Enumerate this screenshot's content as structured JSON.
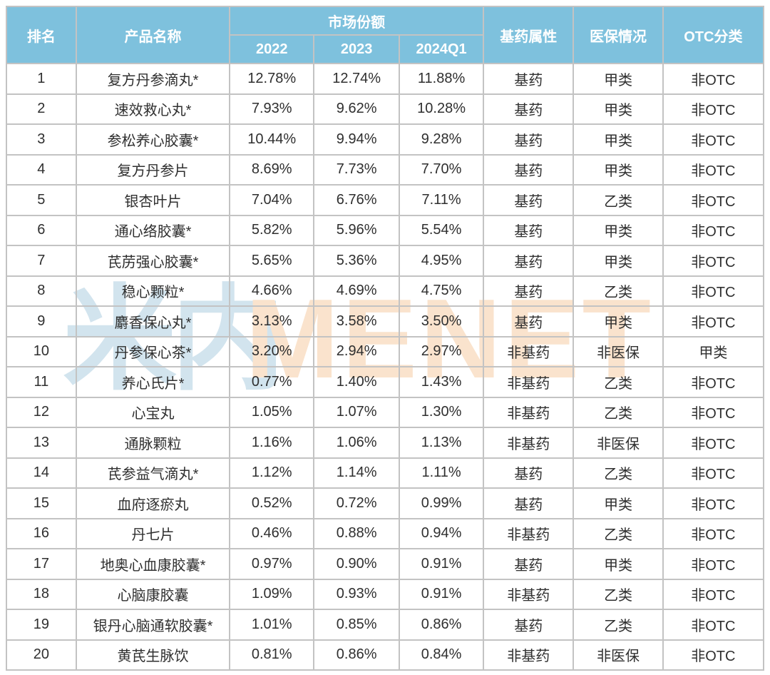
{
  "colors": {
    "header_bg": "#7ec1dd",
    "header_text": "#ffffff",
    "grid_line": "#c3c3c3",
    "body_text": "#2f2f2f",
    "watermark_blue": "#d2e4ee",
    "watermark_orange": "#fae3cd"
  },
  "watermark": {
    "cn": "米内",
    "en": "MENET"
  },
  "chart_data": {
    "type": "table",
    "header": {
      "rank": "排名",
      "product": "产品名称",
      "market_share": "市场份额",
      "periods": [
        "2022",
        "2023",
        "2024Q1"
      ],
      "essential": "基药属性",
      "insurance": "医保情况",
      "otc": "OTC分类"
    },
    "rows": [
      {
        "rank": "1",
        "product": "复方丹参滴丸*",
        "share_2022": "12.78%",
        "share_2023": "12.74%",
        "share_2024q1": "11.88%",
        "essential": "基药",
        "insurance": "甲类",
        "otc": "非OTC"
      },
      {
        "rank": "2",
        "product": "速效救心丸*",
        "share_2022": "7.93%",
        "share_2023": "9.62%",
        "share_2024q1": "10.28%",
        "essential": "基药",
        "insurance": "甲类",
        "otc": "非OTC"
      },
      {
        "rank": "3",
        "product": "参松养心胶囊*",
        "share_2022": "10.44%",
        "share_2023": "9.94%",
        "share_2024q1": "9.28%",
        "essential": "基药",
        "insurance": "甲类",
        "otc": "非OTC"
      },
      {
        "rank": "4",
        "product": "复方丹参片",
        "share_2022": "8.69%",
        "share_2023": "7.73%",
        "share_2024q1": "7.70%",
        "essential": "基药",
        "insurance": "甲类",
        "otc": "非OTC"
      },
      {
        "rank": "5",
        "product": "银杏叶片",
        "share_2022": "7.04%",
        "share_2023": "6.76%",
        "share_2024q1": "7.11%",
        "essential": "基药",
        "insurance": "乙类",
        "otc": "非OTC"
      },
      {
        "rank": "6",
        "product": "通心络胶囊*",
        "share_2022": "5.82%",
        "share_2023": "5.96%",
        "share_2024q1": "5.54%",
        "essential": "基药",
        "insurance": "甲类",
        "otc": "非OTC"
      },
      {
        "rank": "7",
        "product": "芪苈强心胶囊*",
        "share_2022": "5.65%",
        "share_2023": "5.36%",
        "share_2024q1": "4.95%",
        "essential": "基药",
        "insurance": "甲类",
        "otc": "非OTC"
      },
      {
        "rank": "8",
        "product": "稳心颗粒*",
        "share_2022": "4.66%",
        "share_2023": "4.69%",
        "share_2024q1": "4.75%",
        "essential": "基药",
        "insurance": "乙类",
        "otc": "非OTC"
      },
      {
        "rank": "9",
        "product": "麝香保心丸*",
        "share_2022": "3.13%",
        "share_2023": "3.58%",
        "share_2024q1": "3.50%",
        "essential": "基药",
        "insurance": "甲类",
        "otc": "非OTC"
      },
      {
        "rank": "10",
        "product": "丹参保心茶*",
        "share_2022": "3.20%",
        "share_2023": "2.94%",
        "share_2024q1": "2.97%",
        "essential": "非基药",
        "insurance": "非医保",
        "otc": "甲类"
      },
      {
        "rank": "11",
        "product": "养心氏片*",
        "share_2022": "0.77%",
        "share_2023": "1.40%",
        "share_2024q1": "1.43%",
        "essential": "非基药",
        "insurance": "乙类",
        "otc": "非OTC"
      },
      {
        "rank": "12",
        "product": "心宝丸",
        "share_2022": "1.05%",
        "share_2023": "1.07%",
        "share_2024q1": "1.30%",
        "essential": "非基药",
        "insurance": "乙类",
        "otc": "非OTC"
      },
      {
        "rank": "13",
        "product": "通脉颗粒",
        "share_2022": "1.16%",
        "share_2023": "1.06%",
        "share_2024q1": "1.13%",
        "essential": "非基药",
        "insurance": "非医保",
        "otc": "非OTC"
      },
      {
        "rank": "14",
        "product": "芪参益气滴丸*",
        "share_2022": "1.12%",
        "share_2023": "1.14%",
        "share_2024q1": "1.11%",
        "essential": "基药",
        "insurance": "乙类",
        "otc": "非OTC"
      },
      {
        "rank": "15",
        "product": "血府逐瘀丸",
        "share_2022": "0.52%",
        "share_2023": "0.72%",
        "share_2024q1": "0.99%",
        "essential": "基药",
        "insurance": "甲类",
        "otc": "非OTC"
      },
      {
        "rank": "16",
        "product": "丹七片",
        "share_2022": "0.46%",
        "share_2023": "0.88%",
        "share_2024q1": "0.94%",
        "essential": "非基药",
        "insurance": "乙类",
        "otc": "非OTC"
      },
      {
        "rank": "17",
        "product": "地奥心血康胶囊*",
        "share_2022": "0.97%",
        "share_2023": "0.90%",
        "share_2024q1": "0.91%",
        "essential": "基药",
        "insurance": "甲类",
        "otc": "非OTC"
      },
      {
        "rank": "18",
        "product": "心脑康胶囊",
        "share_2022": "1.09%",
        "share_2023": "0.93%",
        "share_2024q1": "0.91%",
        "essential": "非基药",
        "insurance": "乙类",
        "otc": "非OTC"
      },
      {
        "rank": "19",
        "product": "银丹心脑通软胶囊*",
        "share_2022": "1.01%",
        "share_2023": "0.85%",
        "share_2024q1": "0.86%",
        "essential": "基药",
        "insurance": "乙类",
        "otc": "非OTC"
      },
      {
        "rank": "20",
        "product": "黄芪生脉饮",
        "share_2022": "0.81%",
        "share_2023": "0.86%",
        "share_2024q1": "0.84%",
        "essential": "非基药",
        "insurance": "非医保",
        "otc": "非OTC"
      }
    ]
  }
}
